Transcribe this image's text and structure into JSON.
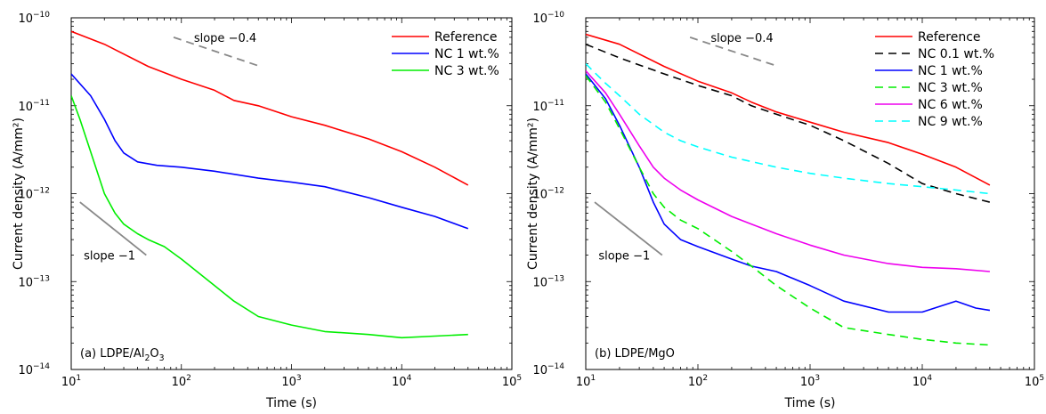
{
  "colors": {
    "reference": "#ff0000",
    "nc01": "#000000",
    "nc1": "#0000ff",
    "nc3": "#00ee00",
    "nc6": "#ee00ee",
    "nc9": "#00ffff",
    "guide": "#888888"
  },
  "chart_data": [
    {
      "type": "line",
      "panel_label": "(a) LDPE/Al2O3",
      "xlabel": "Time (s)",
      "ylabel": "Current density (A/mm²)",
      "xscale": "log",
      "yscale": "log",
      "xlim": [
        10,
        100000
      ],
      "ylim": [
        1e-14,
        1e-10
      ],
      "x_ticks": [
        "10^1",
        "10^2",
        "10^3",
        "10^4",
        "10^5"
      ],
      "y_ticks": [
        "10^-14",
        "10^-13",
        "10^-12",
        "10^-11",
        "10^-10"
      ],
      "legend": "top-right",
      "series": [
        {
          "name": "Reference",
          "color_key": "reference",
          "dash": false,
          "x": [
            10,
            20,
            50,
            100,
            200,
            300,
            500,
            1000,
            2000,
            5000,
            10000,
            20000,
            40000
          ],
          "y": [
            7e-11,
            5e-11,
            2.8e-11,
            2e-11,
            1.5e-11,
            1.15e-11,
            1e-11,
            7.5e-12,
            6e-12,
            4.2e-12,
            3e-12,
            2e-12,
            1.25e-12
          ]
        },
        {
          "name": "NC 1 wt.%",
          "color_key": "nc1",
          "dash": false,
          "x": [
            10,
            15,
            20,
            25,
            30,
            40,
            60,
            100,
            200,
            500,
            1000,
            2000,
            5000,
            10000,
            20000,
            40000
          ],
          "y": [
            2.3e-11,
            1.3e-11,
            7e-12,
            4e-12,
            2.9e-12,
            2.3e-12,
            2.1e-12,
            2e-12,
            1.8e-12,
            1.5e-12,
            1.35e-12,
            1.2e-12,
            9e-13,
            7e-13,
            5.5e-13,
            4e-13
          ]
        },
        {
          "name": "NC 3 wt.%",
          "color_key": "nc3",
          "dash": false,
          "x": [
            10,
            12,
            15,
            20,
            25,
            30,
            40,
            50,
            70,
            100,
            150,
            200,
            300,
            500,
            1000,
            2000,
            5000,
            10000,
            20000,
            40000
          ],
          "y": [
            1.3e-11,
            7e-12,
            3e-12,
            1e-12,
            6e-13,
            4.5e-13,
            3.5e-13,
            3e-13,
            2.5e-13,
            1.8e-13,
            1.2e-13,
            9e-14,
            6e-14,
            4e-14,
            3.2e-14,
            2.7e-14,
            2.5e-14,
            2.3e-14,
            2.4e-14,
            2.5e-14
          ]
        }
      ],
      "annotations": [
        {
          "text": "slope −0.4",
          "x": 130,
          "y": 6e-11
        },
        {
          "text": "slope −1",
          "x": 13,
          "y": 2e-13
        }
      ],
      "guides": [
        {
          "x": [
            85,
            520
          ],
          "y": [
            6e-11,
            2.8e-11
          ],
          "dash": true
        },
        {
          "x": [
            12,
            48
          ],
          "y": [
            8e-13,
            2e-13
          ],
          "dash": false
        }
      ]
    },
    {
      "type": "line",
      "panel_label": "(b) LDPE/MgO",
      "xlabel": "Time (s)",
      "ylabel": "Current density (A/mm²)",
      "xscale": "log",
      "yscale": "log",
      "xlim": [
        10,
        100000
      ],
      "ylim": [
        1e-14,
        1e-10
      ],
      "x_ticks": [
        "10^1",
        "10^2",
        "10^3",
        "10^4",
        "10^5"
      ],
      "y_ticks": [
        "10^-14",
        "10^-13",
        "10^-12",
        "10^-11",
        "10^-10"
      ],
      "legend": "top-right",
      "series": [
        {
          "name": "Reference",
          "color_key": "reference",
          "dash": false,
          "x": [
            10,
            20,
            50,
            100,
            200,
            300,
            500,
            1000,
            2000,
            5000,
            10000,
            20000,
            40000
          ],
          "y": [
            6.5e-11,
            5e-11,
            2.8e-11,
            1.9e-11,
            1.4e-11,
            1.1e-11,
            8.5e-12,
            6.5e-12,
            5e-12,
            3.8e-12,
            2.8e-12,
            2e-12,
            1.25e-12
          ]
        },
        {
          "name": "NC 0.1 wt.%",
          "color_key": "nc01",
          "dash": true,
          "x": [
            10,
            20,
            50,
            100,
            200,
            300,
            500,
            1000,
            2000,
            5000,
            10000,
            20000,
            40000
          ],
          "y": [
            5e-11,
            3.5e-11,
            2.3e-11,
            1.7e-11,
            1.3e-11,
            1e-11,
            8e-12,
            6e-12,
            4e-12,
            2.2e-12,
            1.3e-12,
            1e-12,
            8e-13
          ]
        },
        {
          "name": "NC 1 wt.%",
          "color_key": "nc1",
          "dash": false,
          "x": [
            10,
            15,
            20,
            30,
            40,
            50,
            70,
            100,
            200,
            300,
            500,
            1000,
            2000,
            5000,
            10000,
            20000,
            30000,
            40000
          ],
          "y": [
            2.3e-11,
            1.2e-11,
            6e-12,
            2e-12,
            8e-13,
            4.5e-13,
            3e-13,
            2.5e-13,
            1.8e-13,
            1.5e-13,
            1.3e-13,
            9e-14,
            6e-14,
            4.5e-14,
            4.5e-14,
            6e-14,
            5e-14,
            4.7e-14
          ]
        },
        {
          "name": "NC 3 wt.%",
          "color_key": "nc3",
          "dash": true,
          "x": [
            10,
            15,
            20,
            30,
            40,
            50,
            70,
            100,
            200,
            300,
            500,
            1000,
            2000,
            5000,
            10000,
            20000,
            40000
          ],
          "y": [
            2.2e-11,
            1.1e-11,
            5.5e-12,
            2e-12,
            1e-12,
            7e-13,
            5e-13,
            4e-13,
            2.2e-13,
            1.5e-13,
            9e-14,
            5e-14,
            3e-14,
            2.5e-14,
            2.2e-14,
            2e-14,
            1.9e-14
          ]
        },
        {
          "name": "NC 6 wt.%",
          "color_key": "nc6",
          "dash": false,
          "x": [
            10,
            15,
            20,
            30,
            40,
            50,
            70,
            100,
            200,
            300,
            500,
            1000,
            2000,
            5000,
            10000,
            20000,
            40000
          ],
          "y": [
            2.5e-11,
            1.4e-11,
            8e-12,
            3.5e-12,
            2e-12,
            1.5e-12,
            1.1e-12,
            8.5e-13,
            5.5e-13,
            4.5e-13,
            3.5e-13,
            2.6e-13,
            2e-13,
            1.6e-13,
            1.45e-13,
            1.4e-13,
            1.3e-13
          ]
        },
        {
          "name": "NC 9 wt.%",
          "color_key": "nc9",
          "dash": true,
          "x": [
            10,
            15,
            20,
            30,
            50,
            70,
            100,
            200,
            500,
            1000,
            2000,
            5000,
            10000,
            20000,
            40000
          ],
          "y": [
            3e-11,
            1.8e-11,
            1.3e-11,
            8e-12,
            5e-12,
            4e-12,
            3.4e-12,
            2.6e-12,
            2e-12,
            1.7e-12,
            1.5e-12,
            1.3e-12,
            1.2e-12,
            1.1e-12,
            1e-12
          ]
        }
      ],
      "annotations": [
        {
          "text": "slope −0.4",
          "x": 130,
          "y": 6e-11
        },
        {
          "text": "slope −1",
          "x": 13,
          "y": 2e-13
        }
      ],
      "guides": [
        {
          "x": [
            85,
            520
          ],
          "y": [
            6e-11,
            2.8e-11
          ],
          "dash": true
        },
        {
          "x": [
            12,
            48
          ],
          "y": [
            8e-13,
            2e-13
          ],
          "dash": false
        }
      ]
    }
  ]
}
